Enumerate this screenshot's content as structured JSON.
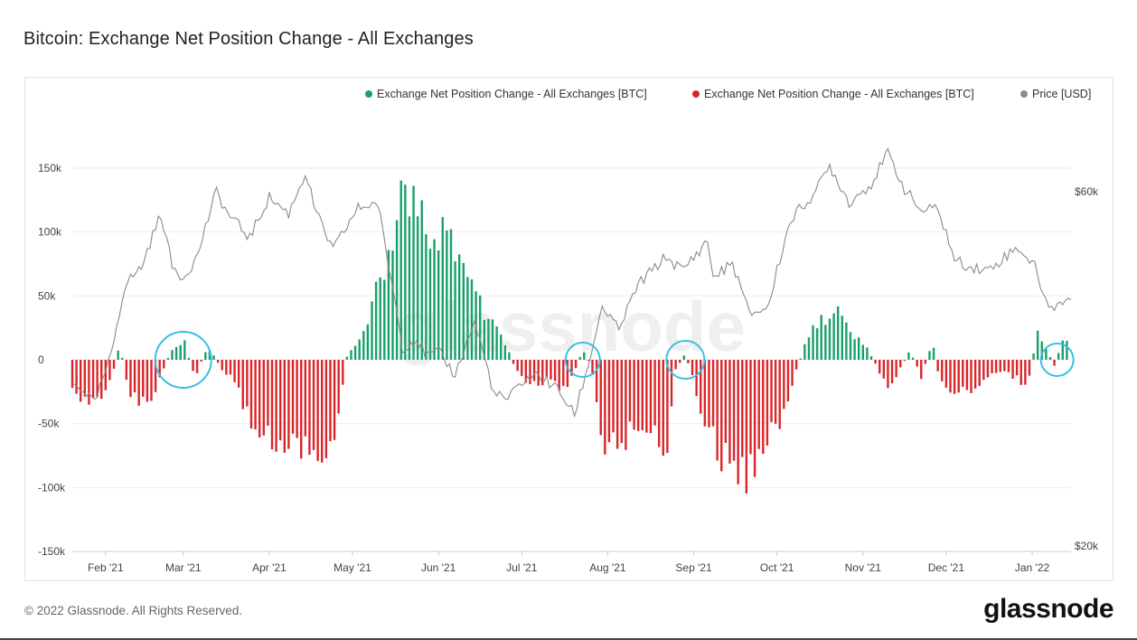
{
  "title": "Bitcoin: Exchange Net Position Change - All Exchanges",
  "footer": "© 2022 Glassnode. All Rights Reserved.",
  "brand": "glassnode",
  "watermark": "glassnode",
  "colors": {
    "positive": "#18a06a",
    "negative": "#d9252a",
    "price": "#8a8a8a",
    "highlight": "#3bbfe0"
  },
  "chart_data": {
    "type": "bar",
    "legend": [
      {
        "label": "Exchange Net Position Change - All Exchanges [BTC]",
        "color": "#18a06a"
      },
      {
        "label": "Exchange Net Position Change - All Exchanges [BTC]",
        "color": "#d9252a"
      },
      {
        "label": "Price [USD]",
        "color": "#8a8a8a"
      }
    ],
    "legend_position": "top-right",
    "y_left": {
      "ticks": [
        "150k",
        "100k",
        "50k",
        "0",
        "-50k",
        "-100k",
        "-150k"
      ],
      "range": [
        -150000,
        150000
      ]
    },
    "y_right": {
      "ticks": [
        "$60k",
        "$20k"
      ],
      "scale": "log",
      "range": [
        20000,
        70000
      ]
    },
    "x_labels": [
      "Feb '21",
      "Mar '21",
      "Apr '21",
      "May '21",
      "Jun '21",
      "Jul '21",
      "Aug '21",
      "Sep '21",
      "Oct '21",
      "Nov '21",
      "Dec '21",
      "Jan '22"
    ],
    "net_position_keypoints": [
      [
        "2021-01-20",
        -20000
      ],
      [
        "2021-01-26",
        -42000
      ],
      [
        "2021-02-02",
        -25000
      ],
      [
        "2021-02-06",
        12000
      ],
      [
        "2021-02-10",
        -30000
      ],
      [
        "2021-02-17",
        -40000
      ],
      [
        "2021-02-24",
        5000
      ],
      [
        "2021-03-01",
        18000
      ],
      [
        "2021-03-05",
        -15000
      ],
      [
        "2021-03-10",
        12000
      ],
      [
        "2021-03-14",
        -5000
      ],
      [
        "2021-03-20",
        -20000
      ],
      [
        "2021-03-26",
        -60000
      ],
      [
        "2021-04-02",
        -70000
      ],
      [
        "2021-04-08",
        -72000
      ],
      [
        "2021-04-14",
        -78000
      ],
      [
        "2021-04-20",
        -82000
      ],
      [
        "2021-04-25",
        -55000
      ],
      [
        "2021-04-29",
        3000
      ],
      [
        "2021-05-04",
        20000
      ],
      [
        "2021-05-10",
        60000
      ],
      [
        "2021-05-16",
        100000
      ],
      [
        "2021-05-20",
        150000
      ],
      [
        "2021-05-24",
        125000
      ],
      [
        "2021-05-31",
        110000
      ],
      [
        "2021-06-07",
        100000
      ],
      [
        "2021-06-13",
        60000
      ],
      [
        "2021-06-19",
        35000
      ],
      [
        "2021-06-25",
        15000
      ],
      [
        "2021-06-29",
        -10000
      ],
      [
        "2021-07-04",
        -20000
      ],
      [
        "2021-07-10",
        -18000
      ],
      [
        "2021-07-16",
        -25000
      ],
      [
        "2021-07-20",
        -10000
      ],
      [
        "2021-07-23",
        8000
      ],
      [
        "2021-07-26",
        -5000
      ],
      [
        "2021-07-30",
        -70000
      ],
      [
        "2021-08-05",
        -72000
      ],
      [
        "2021-08-11",
        -55000
      ],
      [
        "2021-08-17",
        -60000
      ],
      [
        "2021-08-22",
        -85000
      ],
      [
        "2021-08-25",
        -10000
      ],
      [
        "2021-08-29",
        5000
      ],
      [
        "2021-09-01",
        -20000
      ],
      [
        "2021-09-05",
        -50000
      ],
      [
        "2021-09-10",
        -80000
      ],
      [
        "2021-09-15",
        -90000
      ],
      [
        "2021-09-20",
        -100000
      ],
      [
        "2021-09-24",
        -92000
      ],
      [
        "2021-09-28",
        -70000
      ],
      [
        "2021-10-04",
        -40000
      ],
      [
        "2021-10-08",
        -10000
      ],
      [
        "2021-10-12",
        20000
      ],
      [
        "2021-10-18",
        35000
      ],
      [
        "2021-10-23",
        38000
      ],
      [
        "2021-10-27",
        25000
      ],
      [
        "2021-11-02",
        12000
      ],
      [
        "2021-11-06",
        -5000
      ],
      [
        "2021-11-10",
        -25000
      ],
      [
        "2021-11-14",
        -10000
      ],
      [
        "2021-11-18",
        8000
      ],
      [
        "2021-11-22",
        -15000
      ],
      [
        "2021-11-26",
        15000
      ],
      [
        "2021-11-29",
        -20000
      ],
      [
        "2021-12-03",
        -28000
      ],
      [
        "2021-12-09",
        -25000
      ],
      [
        "2021-12-15",
        -18000
      ],
      [
        "2021-12-20",
        -10000
      ],
      [
        "2021-12-26",
        -15000
      ],
      [
        "2021-12-30",
        -25000
      ],
      [
        "2022-01-03",
        25000
      ],
      [
        "2022-01-06",
        10000
      ],
      [
        "2022-01-09",
        -5000
      ],
      [
        "2022-01-12",
        18000
      ]
    ],
    "price_keypoints": [
      [
        "2021-01-20",
        33000
      ],
      [
        "2021-01-24",
        32500
      ],
      [
        "2021-01-28",
        31000
      ],
      [
        "2021-02-03",
        36000
      ],
      [
        "2021-02-08",
        45000
      ],
      [
        "2021-02-14",
        47500
      ],
      [
        "2021-02-21",
        56000
      ],
      [
        "2021-02-25",
        47500
      ],
      [
        "2021-03-01",
        46000
      ],
      [
        "2021-03-06",
        49000
      ],
      [
        "2021-03-13",
        60000
      ],
      [
        "2021-03-17",
        56000
      ],
      [
        "2021-03-25",
        52000
      ],
      [
        "2021-04-01",
        59000
      ],
      [
        "2021-04-08",
        56000
      ],
      [
        "2021-04-14",
        63500
      ],
      [
        "2021-04-18",
        56000
      ],
      [
        "2021-04-24",
        50000
      ],
      [
        "2021-05-03",
        57000
      ],
      [
        "2021-05-10",
        58000
      ],
      [
        "2021-05-13",
        50000
      ],
      [
        "2021-05-19",
        37000
      ],
      [
        "2021-05-24",
        38000
      ],
      [
        "2021-05-28",
        36000
      ],
      [
        "2021-06-01",
        36500
      ],
      [
        "2021-06-07",
        34000
      ],
      [
        "2021-06-14",
        40000
      ],
      [
        "2021-06-21",
        32000
      ],
      [
        "2021-06-26",
        31500
      ],
      [
        "2021-07-02",
        33500
      ],
      [
        "2021-07-07",
        34000
      ],
      [
        "2021-07-14",
        32500
      ],
      [
        "2021-07-20",
        30000
      ],
      [
        "2021-07-25",
        35000
      ],
      [
        "2021-07-30",
        42000
      ],
      [
        "2021-08-05",
        39000
      ],
      [
        "2021-08-12",
        45000
      ],
      [
        "2021-08-22",
        49000
      ],
      [
        "2021-08-28",
        47000
      ],
      [
        "2021-09-06",
        51500
      ],
      [
        "2021-09-08",
        46000
      ],
      [
        "2021-09-15",
        48000
      ],
      [
        "2021-09-21",
        41000
      ],
      [
        "2021-09-28",
        42000
      ],
      [
        "2021-10-01",
        47000
      ],
      [
        "2021-10-06",
        55000
      ],
      [
        "2021-10-15",
        60000
      ],
      [
        "2021-10-20",
        65000
      ],
      [
        "2021-10-27",
        58000
      ],
      [
        "2021-11-04",
        61500
      ],
      [
        "2021-11-10",
        67500
      ],
      [
        "2021-11-16",
        60500
      ],
      [
        "2021-11-22",
        56500
      ],
      [
        "2021-11-28",
        57000
      ],
      [
        "2021-12-04",
        48500
      ],
      [
        "2021-12-10",
        47500
      ],
      [
        "2021-12-16",
        47000
      ],
      [
        "2021-12-22",
        49000
      ],
      [
        "2021-12-27",
        50500
      ],
      [
        "2022-01-02",
        47500
      ],
      [
        "2022-01-07",
        41500
      ],
      [
        "2022-01-11",
        42700
      ],
      [
        "2022-01-15",
        43000
      ]
    ],
    "highlighted_dates": [
      "2021-03-01",
      "2021-07-23",
      "2021-08-29",
      "2022-01-10"
    ]
  }
}
